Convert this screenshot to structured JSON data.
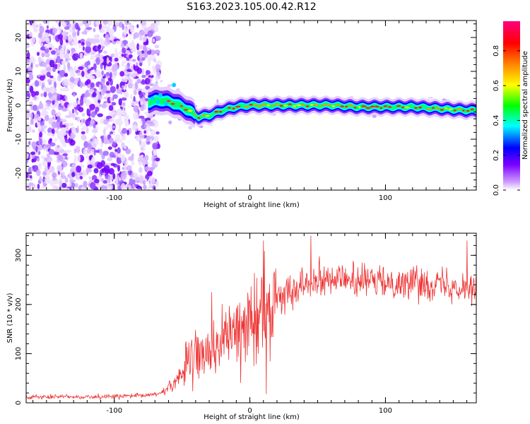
{
  "title": "S163.2023.105.00.42.R12",
  "chart_data": [
    {
      "type": "heatmap",
      "name": "spectrogram",
      "xlabel": "Height of straight line (km)",
      "ylabel": "Frequency (Hz)",
      "xlim": [
        -165,
        167
      ],
      "ylim": [
        -25,
        25
      ],
      "x_ticks": [
        -100,
        0,
        100
      ],
      "y_ticks": [
        -20,
        -10,
        0,
        10,
        20
      ],
      "colorbar": {
        "label": "Normalized spectral amplitude",
        "range": [
          0.0,
          0.97
        ],
        "ticks": [
          0.0,
          0.2,
          0.4,
          0.6,
          0.8
        ],
        "tick_labels": [
          "0.0",
          "0.2",
          "0.4",
          "0.6",
          "0.8"
        ],
        "colormap": [
          "#ffffff",
          "#7b00ff",
          "#0000ff",
          "#00ffff",
          "#00ff00",
          "#ffff00",
          "#ff8000",
          "#ff0000",
          "#ff0080"
        ]
      },
      "noise_region": {
        "x_from": -165,
        "x_to": -75
      },
      "ridge": [
        {
          "x": -75,
          "f": 1.0
        },
        {
          "x": -65,
          "f": 1.5
        },
        {
          "x": -55,
          "f": 0.5
        },
        {
          "x": -45,
          "f": -1.5
        },
        {
          "x": -38,
          "f": -3.5
        },
        {
          "x": -30,
          "f": -3.0
        },
        {
          "x": -20,
          "f": -1.5
        },
        {
          "x": -10,
          "f": -0.5
        },
        {
          "x": 0,
          "f": 0.0
        },
        {
          "x": 20,
          "f": 0.0
        },
        {
          "x": 40,
          "f": 0.0
        },
        {
          "x": 60,
          "f": 0.0
        },
        {
          "x": 80,
          "f": -0.5
        },
        {
          "x": 100,
          "f": -0.5
        },
        {
          "x": 120,
          "f": -0.5
        },
        {
          "x": 140,
          "f": -1.0
        },
        {
          "x": 160,
          "f": -1.5
        },
        {
          "x": 167,
          "f": -1.5
        }
      ]
    },
    {
      "type": "line",
      "name": "snr",
      "xlabel": "Height of straight line (km)",
      "ylabel": "SNR (10 * v/v)",
      "xlim": [
        -165,
        167
      ],
      "ylim": [
        0,
        345
      ],
      "x_ticks": [
        -100,
        0,
        100
      ],
      "y_ticks": [
        0,
        100,
        200,
        300
      ],
      "color": "#ee3333",
      "trend": [
        {
          "x": -165,
          "y": 12
        },
        {
          "x": -120,
          "y": 12
        },
        {
          "x": -80,
          "y": 14
        },
        {
          "x": -65,
          "y": 20
        },
        {
          "x": -55,
          "y": 45
        },
        {
          "x": -45,
          "y": 80
        },
        {
          "x": -35,
          "y": 100
        },
        {
          "x": -25,
          "y": 115
        },
        {
          "x": -15,
          "y": 135
        },
        {
          "x": -5,
          "y": 150
        },
        {
          "x": 5,
          "y": 170
        },
        {
          "x": 15,
          "y": 200
        },
        {
          "x": 25,
          "y": 220
        },
        {
          "x": 35,
          "y": 240
        },
        {
          "x": 45,
          "y": 250
        },
        {
          "x": 55,
          "y": 255
        },
        {
          "x": 70,
          "y": 250
        },
        {
          "x": 90,
          "y": 245
        },
        {
          "x": 110,
          "y": 245
        },
        {
          "x": 130,
          "y": 245
        },
        {
          "x": 150,
          "y": 240
        },
        {
          "x": 167,
          "y": 235
        }
      ],
      "spikes": [
        {
          "x": -28,
          "y": 225
        },
        {
          "x": 10,
          "y": 330
        },
        {
          "x": 12,
          "y": 18
        },
        {
          "x": 45,
          "y": 340
        },
        {
          "x": 160,
          "y": 330
        }
      ]
    }
  ]
}
